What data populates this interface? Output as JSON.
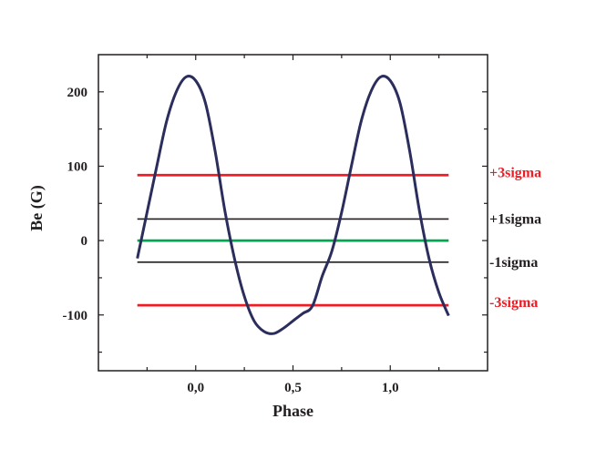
{
  "chart_data": {
    "type": "line",
    "title": "",
    "xlabel": "Phase",
    "ylabel": "Be (G)",
    "xlim": [
      -0.5,
      1.5
    ],
    "ylim": [
      -175,
      250
    ],
    "x_ticks": [
      0.0,
      0.5,
      1.0
    ],
    "x_tick_labels": [
      "0,0",
      "0,5",
      "1,0"
    ],
    "y_ticks": [
      -100,
      0,
      100,
      200
    ],
    "y_tick_labels": [
      "-100",
      "0",
      "100",
      "200"
    ],
    "grid": false,
    "curve": {
      "color": "#2b2d5c",
      "x": [
        -0.3,
        -0.25,
        -0.2,
        -0.15,
        -0.1,
        -0.05,
        0.0,
        0.05,
        0.1,
        0.15,
        0.2,
        0.25,
        0.3,
        0.35,
        0.4,
        0.45,
        0.5,
        0.55,
        0.6,
        0.65,
        0.7,
        0.75,
        0.8,
        0.85,
        0.9,
        0.95,
        1.0,
        1.05,
        1.1,
        1.15,
        1.2,
        1.25,
        1.3
      ],
      "y": [
        -24,
        38,
        100,
        160,
        200,
        220,
        215,
        185,
        120,
        40,
        -25,
        -75,
        -108,
        -122,
        -125,
        -118,
        -108,
        -98,
        -88,
        -48,
        -14,
        38,
        100,
        160,
        200,
        220,
        215,
        185,
        120,
        40,
        -25,
        -70,
        -101
      ]
    },
    "hlines": [
      {
        "label": "+3sigma",
        "y": 88,
        "color": "#ee1c25"
      },
      {
        "label": "+1sigma",
        "y": 29,
        "color": "#231f20"
      },
      {
        "label": "",
        "y": 0,
        "color": "#00a650"
      },
      {
        "label": "-1sigma",
        "y": -29,
        "color": "#231f20"
      },
      {
        "label": "-3sigma",
        "y": -87,
        "color": "#ee1c25"
      }
    ],
    "hline_x_range": [
      -0.3,
      1.3
    ]
  }
}
